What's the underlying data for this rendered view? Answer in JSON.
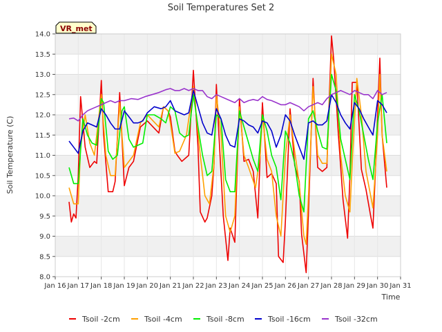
{
  "chart_data": {
    "type": "line",
    "title": "Soil Temperatures Set 2",
    "xlabel": "Time",
    "ylabel": "Soil Temperature (C)",
    "site_badge": "VR_met",
    "ylim": [
      8.0,
      14.0
    ],
    "yticks": [
      8.0,
      8.5,
      9.0,
      9.5,
      10.0,
      10.5,
      11.0,
      11.5,
      12.0,
      12.5,
      13.0,
      13.5,
      14.0
    ],
    "ytick_labels": [
      "8.0",
      "8.5",
      "9.0",
      "9.5",
      "10.0",
      "10.5",
      "11.0",
      "11.5",
      "12.0",
      "12.5",
      "13.0",
      "13.5",
      "14.0"
    ],
    "xlim": [
      16,
      31
    ],
    "xticks": [
      16,
      17,
      18,
      19,
      20,
      21,
      22,
      23,
      24,
      25,
      26,
      27,
      28,
      29,
      30,
      31
    ],
    "xtick_labels": [
      "Jan 16",
      "Jan 17",
      "Jan 18",
      "Jan 19",
      "Jan 20",
      "Jan 21",
      "Jan 22",
      "Jan 23",
      "Jan 24",
      "Jan 25",
      "Jan 26",
      "Jan 27",
      "Jan 28",
      "Jan 29",
      "Jan 30",
      "Jan 31"
    ],
    "grid": true,
    "legend_position": "bottom",
    "series": [
      {
        "name": "Tsoil -2cm",
        "color": "#ee0000",
        "x": [
          16.6,
          16.7,
          16.8,
          16.9,
          17.0,
          17.1,
          17.3,
          17.5,
          17.7,
          17.8,
          18.0,
          18.1,
          18.3,
          18.5,
          18.6,
          18.8,
          19.0,
          19.2,
          19.4,
          19.7,
          20.0,
          20.5,
          20.7,
          20.9,
          21.0,
          21.2,
          21.3,
          21.5,
          21.7,
          21.8,
          22.0,
          22.2,
          22.3,
          22.5,
          22.6,
          22.8,
          22.9,
          23.0,
          23.1,
          23.3,
          23.5,
          23.6,
          23.8,
          24.0,
          24.2,
          24.4,
          24.6,
          24.8,
          24.9,
          25.0,
          25.2,
          25.4,
          25.6,
          25.7,
          25.9,
          26.0,
          26.2,
          26.4,
          26.6,
          26.7,
          26.9,
          27.0,
          27.2,
          27.4,
          27.6,
          27.8,
          28.0,
          28.1,
          28.3,
          28.5,
          28.7,
          28.8,
          28.9,
          29.1,
          29.3,
          29.5,
          29.7,
          29.8,
          29.9,
          30.0,
          30.1,
          30.2,
          30.4
        ],
        "y": [
          9.85,
          9.35,
          9.55,
          9.45,
          10.5,
          12.45,
          11.2,
          10.7,
          10.85,
          10.8,
          12.85,
          11.5,
          10.1,
          10.1,
          10.35,
          12.55,
          10.25,
          10.7,
          10.85,
          11.7,
          11.85,
          11.55,
          12.2,
          12.1,
          11.95,
          11.1,
          11.0,
          10.85,
          10.95,
          11.0,
          13.1,
          11.2,
          9.6,
          9.35,
          9.45,
          10.0,
          10.8,
          12.75,
          11.6,
          9.5,
          8.4,
          9.2,
          8.85,
          12.4,
          10.85,
          10.9,
          10.6,
          9.45,
          11.0,
          12.3,
          10.45,
          10.55,
          10.3,
          8.5,
          8.35,
          9.4,
          12.15,
          10.75,
          10.35,
          9.05,
          8.1,
          9.6,
          12.9,
          10.7,
          10.6,
          10.7,
          13.95,
          13.35,
          11.5,
          9.9,
          8.95,
          10.5,
          12.8,
          12.8,
          10.65,
          10.15,
          9.5,
          9.2,
          10.5,
          12.0,
          13.4,
          11.5,
          10.2
        ]
      },
      {
        "name": "Tsoil -4cm",
        "color": "#ffa000",
        "x": [
          16.6,
          16.8,
          17.0,
          17.1,
          17.3,
          17.5,
          17.7,
          18.0,
          18.2,
          18.4,
          18.6,
          18.8,
          19.0,
          19.2,
          19.4,
          19.7,
          20.0,
          20.5,
          20.7,
          20.9,
          21.0,
          21.2,
          21.4,
          21.7,
          22.0,
          22.3,
          22.5,
          22.7,
          22.9,
          23.0,
          23.2,
          23.4,
          23.6,
          23.8,
          24.0,
          24.2,
          24.4,
          24.7,
          24.9,
          25.0,
          25.2,
          25.4,
          25.6,
          25.8,
          26.0,
          26.2,
          26.4,
          26.6,
          26.8,
          26.9,
          27.0,
          27.2,
          27.4,
          27.6,
          27.8,
          28.0,
          28.2,
          28.4,
          28.6,
          28.8,
          28.9,
          29.1,
          29.3,
          29.5,
          29.7,
          29.8,
          30.0,
          30.1,
          30.2,
          30.4
        ],
        "y": [
          10.2,
          9.8,
          9.8,
          11.2,
          12.0,
          11.3,
          11.0,
          12.5,
          11.0,
          10.5,
          10.5,
          12.3,
          10.7,
          10.85,
          11.0,
          11.8,
          12.0,
          11.7,
          12.2,
          12.1,
          11.8,
          11.05,
          11.1,
          11.5,
          12.7,
          11.0,
          10.0,
          9.8,
          10.8,
          12.5,
          11.5,
          9.5,
          9.1,
          9.5,
          12.2,
          11.0,
          10.7,
          10.2,
          11.0,
          12.0,
          10.9,
          10.6,
          9.5,
          9.0,
          11.0,
          12.0,
          11.1,
          10.3,
          9.0,
          8.8,
          10.0,
          12.7,
          11.0,
          10.8,
          10.8,
          13.5,
          13.0,
          11.0,
          10.0,
          9.6,
          10.8,
          12.9,
          12.0,
          10.6,
          10.0,
          9.7,
          11.5,
          13.0,
          11.5,
          10.6
        ]
      },
      {
        "name": "Tsoil -8cm",
        "color": "#00ee00",
        "x": [
          16.6,
          16.8,
          17.0,
          17.2,
          17.4,
          17.6,
          17.8,
          18.0,
          18.1,
          18.3,
          18.5,
          18.7,
          18.9,
          19.0,
          19.2,
          19.4,
          19.6,
          19.8,
          20.0,
          20.3,
          20.6,
          20.8,
          21.0,
          21.2,
          21.4,
          21.6,
          21.8,
          22.0,
          22.2,
          22.4,
          22.6,
          22.8,
          23.0,
          23.2,
          23.4,
          23.6,
          23.8,
          24.0,
          24.2,
          24.4,
          24.6,
          24.8,
          25.0,
          25.2,
          25.4,
          25.6,
          25.8,
          26.0,
          26.2,
          26.4,
          26.6,
          26.8,
          27.0,
          27.2,
          27.4,
          27.6,
          27.8,
          28.0,
          28.2,
          28.4,
          28.6,
          28.8,
          29.0,
          29.2,
          29.4,
          29.6,
          29.8,
          30.0,
          30.2,
          30.4
        ],
        "y": [
          10.7,
          10.3,
          10.3,
          11.9,
          11.5,
          11.3,
          11.25,
          12.4,
          12.3,
          11.1,
          10.9,
          11.0,
          12.1,
          12.2,
          11.4,
          11.2,
          11.25,
          11.3,
          12.0,
          12.0,
          11.9,
          11.8,
          12.2,
          12.1,
          11.55,
          11.45,
          11.5,
          12.5,
          11.7,
          11.0,
          10.5,
          10.6,
          12.0,
          11.9,
          10.4,
          10.1,
          10.1,
          12.1,
          11.7,
          11.3,
          10.9,
          10.6,
          12.0,
          11.6,
          11.0,
          10.7,
          9.9,
          11.6,
          11.3,
          10.8,
          10.0,
          9.6,
          11.9,
          12.1,
          11.6,
          11.2,
          11.15,
          13.0,
          12.6,
          11.4,
          10.9,
          10.4,
          12.5,
          12.1,
          11.5,
          10.9,
          10.4,
          11.8,
          12.5,
          11.3
        ]
      },
      {
        "name": "Tsoil -16cm",
        "color": "#0000cc",
        "x": [
          16.6,
          16.8,
          17.0,
          17.2,
          17.4,
          17.6,
          17.8,
          18.0,
          18.2,
          18.4,
          18.6,
          18.8,
          19.0,
          19.2,
          19.4,
          19.6,
          19.8,
          20.0,
          20.3,
          20.6,
          20.8,
          21.0,
          21.2,
          21.4,
          21.6,
          21.8,
          22.0,
          22.2,
          22.4,
          22.6,
          22.8,
          23.0,
          23.2,
          23.4,
          23.6,
          23.8,
          24.0,
          24.2,
          24.4,
          24.6,
          24.8,
          25.0,
          25.2,
          25.4,
          25.6,
          25.8,
          26.0,
          26.2,
          26.4,
          26.6,
          26.8,
          27.0,
          27.2,
          27.4,
          27.6,
          27.8,
          28.0,
          28.2,
          28.4,
          28.6,
          28.8,
          29.0,
          29.2,
          29.4,
          29.6,
          29.8,
          30.0,
          30.2,
          30.4
        ],
        "y": [
          11.35,
          11.2,
          11.05,
          11.6,
          11.8,
          11.75,
          11.7,
          12.15,
          12.0,
          11.8,
          11.65,
          11.65,
          12.1,
          11.95,
          11.8,
          11.8,
          11.85,
          12.05,
          12.2,
          12.15,
          12.2,
          12.35,
          12.1,
          12.05,
          12.0,
          12.05,
          12.6,
          12.2,
          11.8,
          11.55,
          11.5,
          12.15,
          11.9,
          11.5,
          11.25,
          11.2,
          11.9,
          11.85,
          11.75,
          11.7,
          11.55,
          11.85,
          11.8,
          11.6,
          11.2,
          11.5,
          12.0,
          11.85,
          11.5,
          11.2,
          10.9,
          11.8,
          11.85,
          11.75,
          11.75,
          11.85,
          12.5,
          12.3,
          12.0,
          11.8,
          11.65,
          12.3,
          12.15,
          11.9,
          11.7,
          11.5,
          12.35,
          12.25,
          12.05
        ]
      },
      {
        "name": "Tsoil -32cm",
        "color": "#9933cc",
        "x": [
          16.6,
          16.8,
          17.0,
          17.2,
          17.4,
          17.6,
          17.8,
          18.0,
          18.2,
          18.4,
          18.6,
          18.8,
          19.0,
          19.3,
          19.6,
          19.9,
          20.2,
          20.5,
          20.8,
          21.0,
          21.2,
          21.4,
          21.6,
          21.8,
          22.0,
          22.2,
          22.4,
          22.6,
          22.8,
          23.0,
          23.2,
          23.4,
          23.6,
          23.8,
          24.0,
          24.2,
          24.4,
          24.6,
          24.8,
          25.0,
          25.2,
          25.4,
          25.6,
          25.8,
          26.0,
          26.2,
          26.4,
          26.6,
          26.8,
          27.0,
          27.2,
          27.4,
          27.6,
          27.8,
          28.0,
          28.2,
          28.4,
          28.6,
          28.8,
          29.0,
          29.2,
          29.4,
          29.6,
          29.8,
          30.0,
          30.2,
          30.4
        ],
        "y": [
          11.9,
          11.92,
          11.85,
          12.0,
          12.1,
          12.15,
          12.2,
          12.25,
          12.3,
          12.35,
          12.3,
          12.35,
          12.35,
          12.4,
          12.38,
          12.45,
          12.5,
          12.55,
          12.62,
          12.65,
          12.6,
          12.6,
          12.65,
          12.6,
          12.65,
          12.6,
          12.6,
          12.45,
          12.4,
          12.5,
          12.45,
          12.4,
          12.35,
          12.3,
          12.4,
          12.3,
          12.35,
          12.38,
          12.35,
          12.45,
          12.38,
          12.35,
          12.3,
          12.25,
          12.25,
          12.3,
          12.25,
          12.2,
          12.1,
          12.2,
          12.25,
          12.3,
          12.25,
          12.4,
          12.5,
          12.55,
          12.6,
          12.55,
          12.5,
          12.6,
          12.55,
          12.5,
          12.5,
          12.4,
          12.6,
          12.5,
          12.55
        ]
      }
    ]
  }
}
